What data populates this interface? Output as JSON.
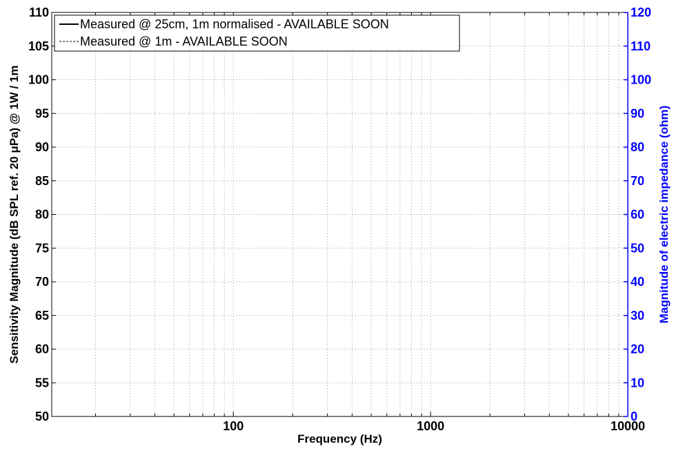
{
  "chart_data": {
    "type": "line",
    "xlabel": "Frequency (Hz)",
    "ylabel": "Sensitivity Magnitude (dB SPL ref. 20 μPa) @ 1W / 1m",
    "y2label": "Magnitude of electric impedance (ohm)",
    "xscale": "log",
    "xlim": [
      12,
      10000
    ],
    "ylim": [
      50,
      110
    ],
    "y2lim": [
      0,
      120
    ],
    "xticks": [
      100,
      1000,
      10000
    ],
    "xtick_labels": [
      "100",
      "1000",
      "10000"
    ],
    "yticks": [
      50,
      55,
      60,
      65,
      70,
      75,
      80,
      85,
      90,
      95,
      100,
      105,
      110
    ],
    "ytick_labels": [
      "50",
      "55",
      "60",
      "65",
      "70",
      "75",
      "80",
      "85",
      "90",
      "95",
      "100",
      "105",
      "110"
    ],
    "y2ticks": [
      0,
      10,
      20,
      30,
      40,
      50,
      60,
      70,
      80,
      90,
      100,
      110,
      120
    ],
    "y2tick_labels": [
      "0",
      "10",
      "20",
      "30",
      "40",
      "50",
      "60",
      "70",
      "80",
      "90",
      "100",
      "110",
      "120"
    ],
    "grid": true,
    "legend_position": "top-left",
    "series": [
      {
        "name": "Measured @ 25cm, 1m normalised - AVAILABLE SOON",
        "style": "solid",
        "color": "#000000",
        "x": [],
        "y": []
      },
      {
        "name": "Measured @ 1m - AVAILABLE SOON",
        "style": "dashed",
        "color": "#000000",
        "x": [],
        "y": []
      }
    ],
    "colors": {
      "right_axis": "#0000ff",
      "left_axis": "#000000",
      "grid": "#9a9a9a"
    }
  }
}
